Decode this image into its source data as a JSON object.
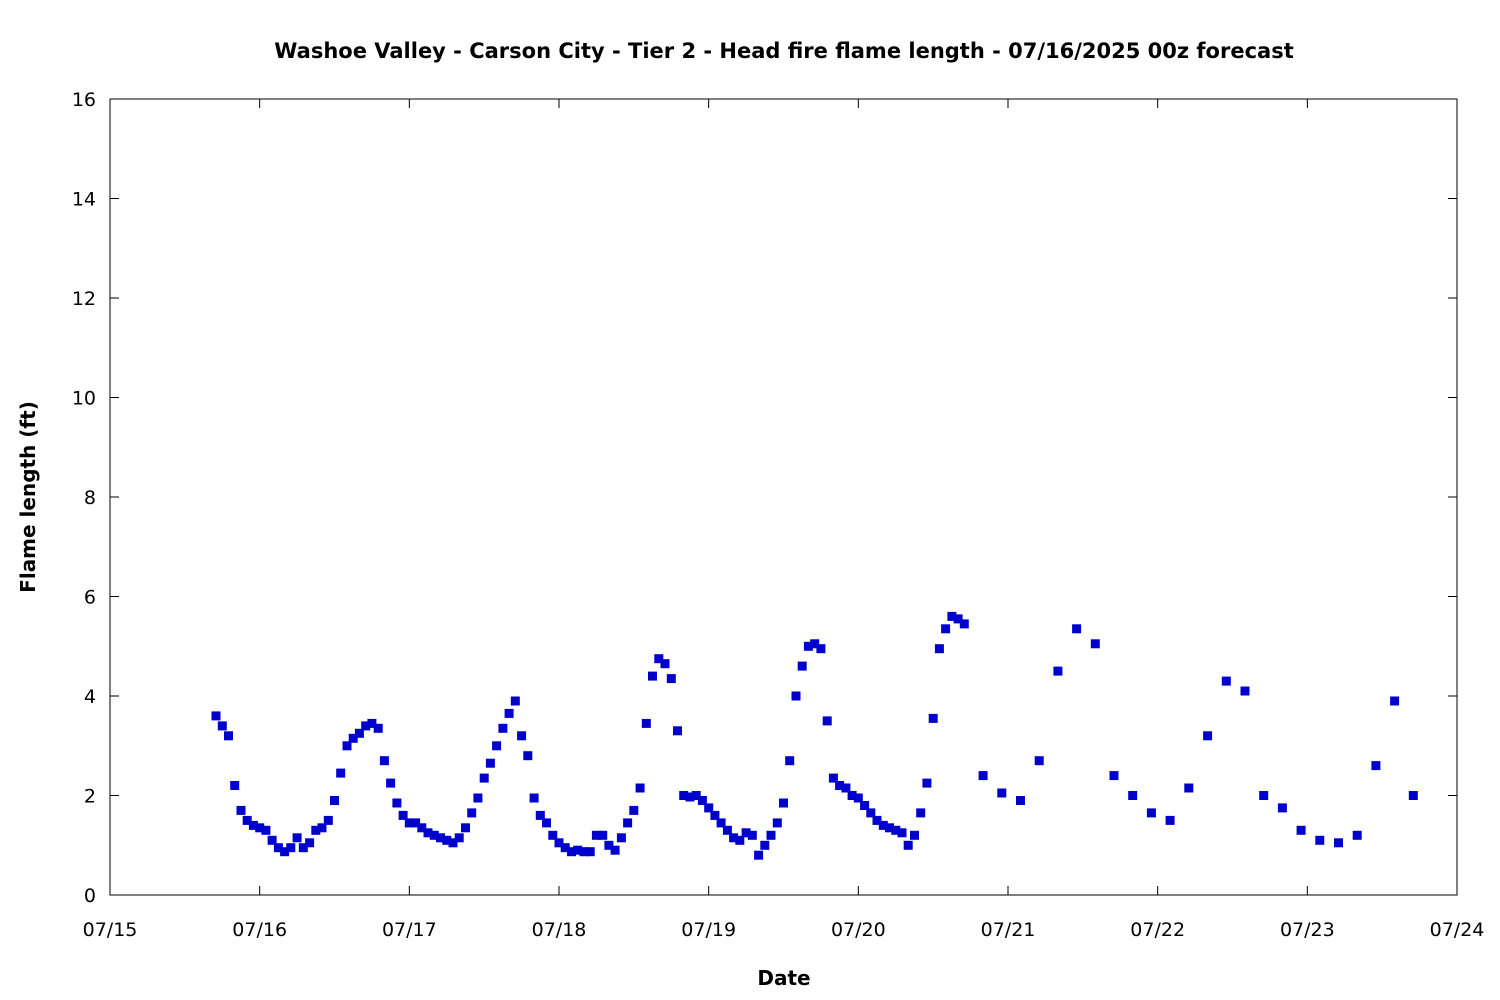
{
  "chart_data": {
    "type": "scatter",
    "title": "Washoe Valley - Carson City - Tier 2 - Head fire flame length - 07/16/2025 00z forecast",
    "xlabel": "Date",
    "ylabel": "Flame length (ft)",
    "xlim": [
      "07/15",
      "07/24"
    ],
    "ylim": [
      0,
      16
    ],
    "x_ticks": [
      "07/15",
      "07/16",
      "07/17",
      "07/18",
      "07/19",
      "07/20",
      "07/21",
      "07/22",
      "07/23",
      "07/24"
    ],
    "y_ticks": [
      0,
      2,
      4,
      6,
      8,
      10,
      12,
      14,
      16
    ],
    "grid": false,
    "marker_color": "#0000cc",
    "series": [
      {
        "points": [
          [
            "07/15 17:00",
            3.6
          ],
          [
            "07/15 18:00",
            3.4
          ],
          [
            "07/15 19:00",
            3.2
          ],
          [
            "07/15 20:00",
            2.2
          ],
          [
            "07/15 21:00",
            1.7
          ],
          [
            "07/15 22:00",
            1.5
          ],
          [
            "07/15 23:00",
            1.4
          ],
          [
            "07/16 00:00",
            1.35
          ],
          [
            "07/16 01:00",
            1.3
          ],
          [
            "07/16 02:00",
            1.1
          ],
          [
            "07/16 03:00",
            0.95
          ],
          [
            "07/16 04:00",
            0.87
          ],
          [
            "07/16 05:00",
            0.95
          ],
          [
            "07/16 06:00",
            1.15
          ],
          [
            "07/16 07:00",
            0.95
          ],
          [
            "07/16 08:00",
            1.05
          ],
          [
            "07/16 09:00",
            1.3
          ],
          [
            "07/16 10:00",
            1.35
          ],
          [
            "07/16 11:00",
            1.5
          ],
          [
            "07/16 12:00",
            1.9
          ],
          [
            "07/16 13:00",
            2.45
          ],
          [
            "07/16 14:00",
            3.0
          ],
          [
            "07/16 15:00",
            3.15
          ],
          [
            "07/16 16:00",
            3.25
          ],
          [
            "07/16 17:00",
            3.4
          ],
          [
            "07/16 18:00",
            3.45
          ],
          [
            "07/16 19:00",
            3.35
          ],
          [
            "07/16 20:00",
            2.7
          ],
          [
            "07/16 21:00",
            2.25
          ],
          [
            "07/16 22:00",
            1.85
          ],
          [
            "07/16 23:00",
            1.6
          ],
          [
            "07/17 00:00",
            1.45
          ],
          [
            "07/17 01:00",
            1.45
          ],
          [
            "07/17 02:00",
            1.35
          ],
          [
            "07/17 03:00",
            1.25
          ],
          [
            "07/17 04:00",
            1.2
          ],
          [
            "07/17 05:00",
            1.15
          ],
          [
            "07/17 06:00",
            1.1
          ],
          [
            "07/17 07:00",
            1.05
          ],
          [
            "07/17 08:00",
            1.15
          ],
          [
            "07/17 09:00",
            1.35
          ],
          [
            "07/17 10:00",
            1.65
          ],
          [
            "07/17 11:00",
            1.95
          ],
          [
            "07/17 12:00",
            2.35
          ],
          [
            "07/17 13:00",
            2.65
          ],
          [
            "07/17 14:00",
            3.0
          ],
          [
            "07/17 15:00",
            3.35
          ],
          [
            "07/17 16:00",
            3.65
          ],
          [
            "07/17 17:00",
            3.9
          ],
          [
            "07/17 18:00",
            3.2
          ],
          [
            "07/17 19:00",
            2.8
          ],
          [
            "07/17 20:00",
            1.95
          ],
          [
            "07/17 21:00",
            1.6
          ],
          [
            "07/17 22:00",
            1.45
          ],
          [
            "07/17 23:00",
            1.2
          ],
          [
            "07/18 00:00",
            1.05
          ],
          [
            "07/18 01:00",
            0.95
          ],
          [
            "07/18 02:00",
            0.87
          ],
          [
            "07/18 03:00",
            0.9
          ],
          [
            "07/18 04:00",
            0.87
          ],
          [
            "07/18 05:00",
            0.87
          ],
          [
            "07/18 06:00",
            1.2
          ],
          [
            "07/18 07:00",
            1.2
          ],
          [
            "07/18 08:00",
            1.0
          ],
          [
            "07/18 09:00",
            0.9
          ],
          [
            "07/18 10:00",
            1.15
          ],
          [
            "07/18 11:00",
            1.45
          ],
          [
            "07/18 12:00",
            1.7
          ],
          [
            "07/18 13:00",
            2.15
          ],
          [
            "07/18 14:00",
            3.45
          ],
          [
            "07/18 15:00",
            4.4
          ],
          [
            "07/18 16:00",
            4.75
          ],
          [
            "07/18 17:00",
            4.65
          ],
          [
            "07/18 18:00",
            4.35
          ],
          [
            "07/18 19:00",
            3.3
          ],
          [
            "07/18 20:00",
            2.0
          ],
          [
            "07/18 21:00",
            1.97
          ],
          [
            "07/18 22:00",
            2.0
          ],
          [
            "07/18 23:00",
            1.9
          ],
          [
            "07/19 00:00",
            1.75
          ],
          [
            "07/19 01:00",
            1.6
          ],
          [
            "07/19 02:00",
            1.45
          ],
          [
            "07/19 03:00",
            1.3
          ],
          [
            "07/19 04:00",
            1.15
          ],
          [
            "07/19 05:00",
            1.1
          ],
          [
            "07/19 06:00",
            1.25
          ],
          [
            "07/19 07:00",
            1.2
          ],
          [
            "07/19 08:00",
            0.8
          ],
          [
            "07/19 09:00",
            1.0
          ],
          [
            "07/19 10:00",
            1.2
          ],
          [
            "07/19 11:00",
            1.45
          ],
          [
            "07/19 12:00",
            1.85
          ],
          [
            "07/19 13:00",
            2.7
          ],
          [
            "07/19 14:00",
            4.0
          ],
          [
            "07/19 15:00",
            4.6
          ],
          [
            "07/19 16:00",
            5.0
          ],
          [
            "07/19 17:00",
            5.05
          ],
          [
            "07/19 18:00",
            4.95
          ],
          [
            "07/19 19:00",
            3.5
          ],
          [
            "07/19 20:00",
            2.35
          ],
          [
            "07/19 21:00",
            2.2
          ],
          [
            "07/19 22:00",
            2.15
          ],
          [
            "07/19 23:00",
            2.0
          ],
          [
            "07/20 00:00",
            1.95
          ],
          [
            "07/20 01:00",
            1.8
          ],
          [
            "07/20 02:00",
            1.65
          ],
          [
            "07/20 03:00",
            1.5
          ],
          [
            "07/20 04:00",
            1.4
          ],
          [
            "07/20 05:00",
            1.35
          ],
          [
            "07/20 06:00",
            1.3
          ],
          [
            "07/20 07:00",
            1.25
          ],
          [
            "07/20 08:00",
            1.0
          ],
          [
            "07/20 09:00",
            1.2
          ],
          [
            "07/20 10:00",
            1.65
          ],
          [
            "07/20 11:00",
            2.25
          ],
          [
            "07/20 12:00",
            3.55
          ],
          [
            "07/20 13:00",
            4.95
          ],
          [
            "07/20 14:00",
            5.35
          ],
          [
            "07/20 15:00",
            5.6
          ],
          [
            "07/20 16:00",
            5.55
          ],
          [
            "07/20 17:00",
            5.45
          ],
          [
            "07/20 20:00",
            2.4
          ],
          [
            "07/20 23:00",
            2.05
          ],
          [
            "07/21 02:00",
            1.9
          ],
          [
            "07/21 05:00",
            2.7
          ],
          [
            "07/21 08:00",
            4.5
          ],
          [
            "07/21 11:00",
            5.35
          ],
          [
            "07/21 14:00",
            5.05
          ],
          [
            "07/21 17:00",
            2.4
          ],
          [
            "07/21 20:00",
            2.0
          ],
          [
            "07/21 23:00",
            1.65
          ],
          [
            "07/22 02:00",
            1.5
          ],
          [
            "07/22 05:00",
            2.15
          ],
          [
            "07/22 08:00",
            3.2
          ],
          [
            "07/22 11:00",
            4.3
          ],
          [
            "07/22 14:00",
            4.1
          ],
          [
            "07/22 17:00",
            2.0
          ],
          [
            "07/22 20:00",
            1.75
          ],
          [
            "07/22 23:00",
            1.3
          ],
          [
            "07/23 02:00",
            1.1
          ],
          [
            "07/23 05:00",
            1.05
          ],
          [
            "07/23 08:00",
            1.2
          ],
          [
            "07/23 11:00",
            2.6
          ],
          [
            "07/23 14:00",
            3.9
          ],
          [
            "07/23 17:00",
            2.0
          ]
        ]
      }
    ]
  }
}
